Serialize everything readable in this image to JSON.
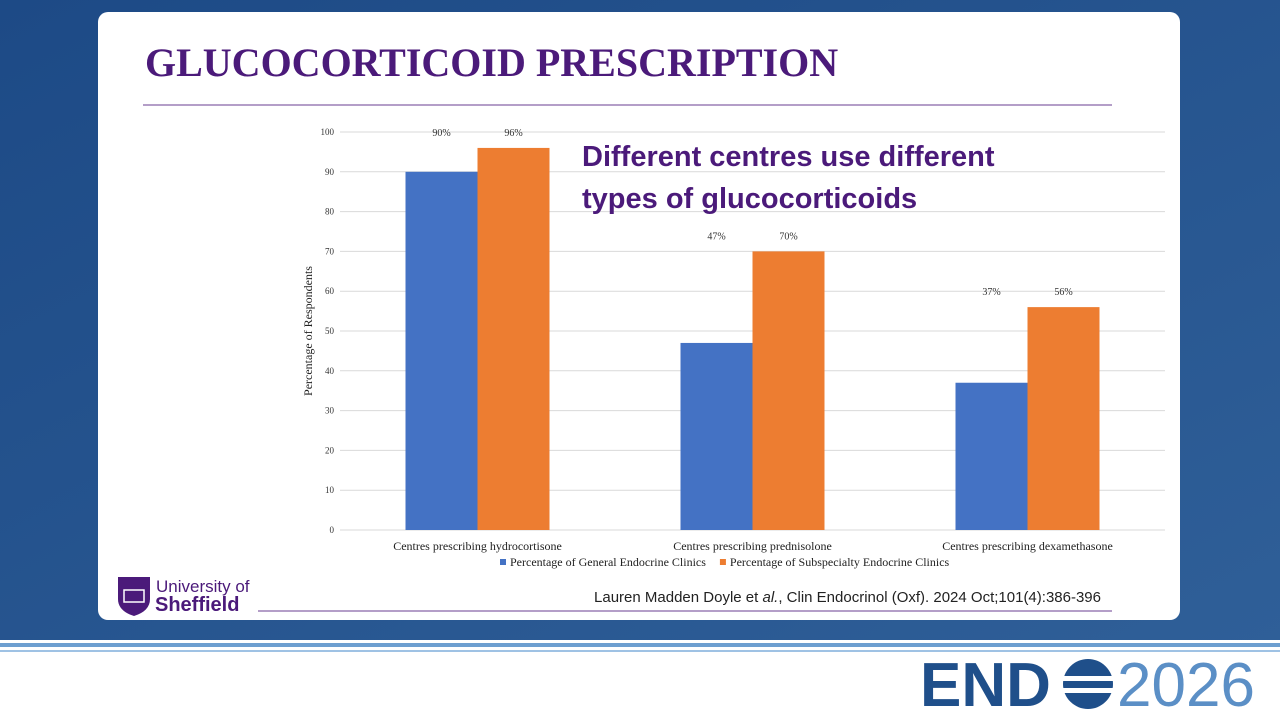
{
  "slide": {
    "title": "GLUCOCORTICOID PRESCRIPTION",
    "annotation": [
      "Different centres use different",
      "types of glucocorticoids"
    ],
    "citation": {
      "authors": "Lauren Madden Doyle et ",
      "etal": "al.",
      "source": ", Clin Endocrinol (Oxf). 2024 Oct;101(4):386-396"
    },
    "university": [
      "University of",
      "Sheffield"
    ],
    "event": {
      "brand": "END",
      "year": "2026"
    }
  },
  "chart_data": {
    "type": "bar",
    "y_label": "Percentage of Respondents",
    "categories": [
      "Centres prescribing hydrocortisone",
      "Centres prescribing prednisolone",
      "Centres prescribing dexamethasone"
    ],
    "series": [
      {
        "name": "Percentage of General Endocrine Clinics",
        "color": "#4472c4",
        "values": [
          90,
          47,
          37
        ],
        "value_labels": [
          "90%",
          "47%",
          "37%"
        ]
      },
      {
        "name": "Percentage of Subspecialty Endocrine Clinics",
        "color": "#ed7d31",
        "values": [
          96,
          70,
          56
        ],
        "value_labels": [
          "96%",
          "70%",
          "56%"
        ]
      }
    ],
    "ylim": [
      0,
      100
    ],
    "yticks": [
      0,
      10,
      20,
      30,
      40,
      50,
      60,
      70,
      80,
      90,
      100
    ],
    "grid": true,
    "legend": "bottom"
  }
}
